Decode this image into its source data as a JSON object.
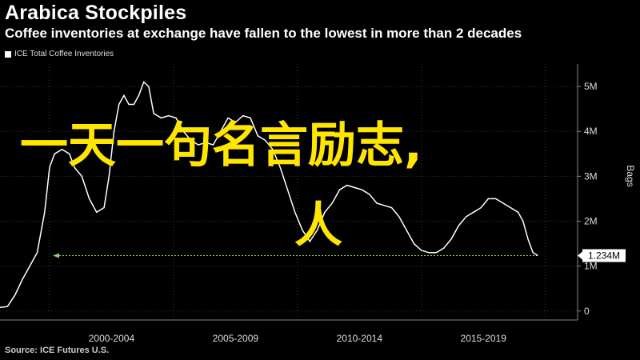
{
  "header": {
    "title": "Arabica Stockpiles",
    "subtitle": "Coffee inventories at exchange have fallen to the lowest in more than 2 decades"
  },
  "legend": {
    "label": "ICE Total Coffee Inventories"
  },
  "source": "Source: ICE Futures U.S.",
  "overlay": {
    "line1": "一天一句名言励志,",
    "line2": "人"
  },
  "colors": {
    "background": "#000000",
    "line": "#ffffff",
    "reference": "#8fd16a",
    "overlay_text": "#ffe600"
  },
  "chart_data": {
    "type": "line",
    "title": "Arabica Stockpiles",
    "subtitle": "Coffee inventories at exchange have fallen to the lowest in more than 2 decades",
    "ylabel": "Bags",
    "ylim": [
      -0.2,
      5.5
    ],
    "y_ticks": [
      {
        "value": 0,
        "label": "0"
      },
      {
        "value": 1,
        "label": "1M"
      },
      {
        "value": 2,
        "label": "2M"
      },
      {
        "value": 3,
        "label": "3M"
      },
      {
        "value": 4,
        "label": "4M"
      },
      {
        "value": 5,
        "label": "5M"
      }
    ],
    "x_range": [
      1998.0,
      2021.3
    ],
    "x_periods": [
      {
        "label": "2000-2004",
        "start": 2000.0,
        "end": 2005.0
      },
      {
        "label": "2005-2009",
        "start": 2005.0,
        "end": 2010.0
      },
      {
        "label": "2010-2014",
        "start": 2010.0,
        "end": 2015.0
      },
      {
        "label": "2015-2019",
        "start": 2015.0,
        "end": 2020.0
      }
    ],
    "last_value": {
      "label": "1.234M",
      "value": 1.234
    },
    "reference_line": {
      "value": 1.234,
      "style": "dotted"
    },
    "grid": true,
    "series": [
      {
        "name": "ICE Total Coffee Inventories",
        "points": [
          [
            1998.0,
            0.08
          ],
          [
            1998.3,
            0.1
          ],
          [
            1998.6,
            0.35
          ],
          [
            1998.9,
            0.7
          ],
          [
            1999.2,
            1.0
          ],
          [
            1999.5,
            1.3
          ],
          [
            1999.8,
            2.2
          ],
          [
            2000.0,
            3.2
          ],
          [
            2000.2,
            3.5
          ],
          [
            2000.5,
            3.6
          ],
          [
            2000.8,
            3.5
          ],
          [
            2001.0,
            3.2
          ],
          [
            2001.3,
            3.0
          ],
          [
            2001.6,
            2.5
          ],
          [
            2001.9,
            2.2
          ],
          [
            2002.2,
            2.3
          ],
          [
            2002.4,
            3.0
          ],
          [
            2002.6,
            4.0
          ],
          [
            2002.8,
            4.6
          ],
          [
            2003.0,
            4.8
          ],
          [
            2003.2,
            4.6
          ],
          [
            2003.4,
            4.6
          ],
          [
            2003.6,
            4.8
          ],
          [
            2003.8,
            5.1
          ],
          [
            2004.0,
            5.0
          ],
          [
            2004.2,
            4.4
          ],
          [
            2004.5,
            4.3
          ],
          [
            2004.8,
            4.35
          ],
          [
            2005.1,
            4.3
          ],
          [
            2005.4,
            4.0
          ],
          [
            2005.7,
            3.8
          ],
          [
            2006.0,
            3.7
          ],
          [
            2006.3,
            3.75
          ],
          [
            2006.6,
            3.7
          ],
          [
            2006.9,
            4.0
          ],
          [
            2007.2,
            4.3
          ],
          [
            2007.5,
            4.2
          ],
          [
            2007.8,
            4.35
          ],
          [
            2008.1,
            4.3
          ],
          [
            2008.4,
            3.9
          ],
          [
            2008.7,
            3.8
          ],
          [
            2009.0,
            3.6
          ],
          [
            2009.3,
            3.2
          ],
          [
            2009.6,
            2.7
          ],
          [
            2009.9,
            2.2
          ],
          [
            2010.2,
            1.8
          ],
          [
            2010.5,
            1.55
          ],
          [
            2010.8,
            1.8
          ],
          [
            2011.1,
            2.2
          ],
          [
            2011.4,
            2.4
          ],
          [
            2011.7,
            2.7
          ],
          [
            2012.0,
            2.8
          ],
          [
            2012.3,
            2.75
          ],
          [
            2012.6,
            2.7
          ],
          [
            2012.9,
            2.6
          ],
          [
            2013.2,
            2.4
          ],
          [
            2013.5,
            2.35
          ],
          [
            2013.8,
            2.3
          ],
          [
            2014.1,
            2.1
          ],
          [
            2014.4,
            1.8
          ],
          [
            2014.7,
            1.5
          ],
          [
            2015.0,
            1.35
          ],
          [
            2015.3,
            1.3
          ],
          [
            2015.6,
            1.3
          ],
          [
            2015.9,
            1.4
          ],
          [
            2016.2,
            1.6
          ],
          [
            2016.5,
            1.9
          ],
          [
            2016.8,
            2.1
          ],
          [
            2017.1,
            2.2
          ],
          [
            2017.4,
            2.3
          ],
          [
            2017.7,
            2.5
          ],
          [
            2018.0,
            2.5
          ],
          [
            2018.3,
            2.4
          ],
          [
            2018.6,
            2.3
          ],
          [
            2018.9,
            2.2
          ],
          [
            2019.1,
            2.0
          ],
          [
            2019.3,
            1.6
          ],
          [
            2019.5,
            1.3
          ],
          [
            2019.7,
            1.234
          ]
        ]
      }
    ]
  }
}
